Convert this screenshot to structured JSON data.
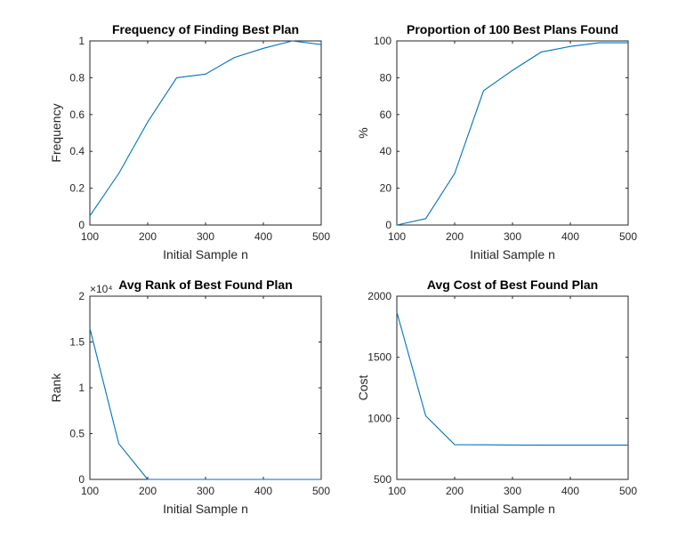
{
  "figure": {
    "background": "#ffffff",
    "line_color": "#0072BD",
    "axis_color": "#262626"
  },
  "chart_data": [
    {
      "type": "line",
      "title": "Frequency of Finding Best Plan",
      "xlabel": "Initial Sample n",
      "ylabel": "Frequency",
      "xlim": [
        100,
        500
      ],
      "ylim": [
        0,
        1
      ],
      "xticks": [
        100,
        200,
        300,
        400,
        500
      ],
      "yticks": [
        0,
        0.2,
        0.4,
        0.6,
        0.8,
        1
      ],
      "ytick_labels": [
        "0",
        "0.2",
        "0.4",
        "0.6",
        "0.8",
        "1"
      ],
      "exponent": "",
      "grid": false,
      "x": [
        100,
        150,
        200,
        250,
        300,
        350,
        400,
        450,
        500
      ],
      "y": [
        0.05,
        0.28,
        0.56,
        0.8,
        0.82,
        0.91,
        0.96,
        1.0,
        0.98
      ]
    },
    {
      "type": "line",
      "title": "Proportion of 100 Best Plans Found",
      "xlabel": "Initial Sample n",
      "ylabel": "%",
      "xlim": [
        100,
        500
      ],
      "ylim": [
        0,
        100
      ],
      "xticks": [
        100,
        200,
        300,
        400,
        500
      ],
      "yticks": [
        0,
        20,
        40,
        60,
        80,
        100
      ],
      "ytick_labels": [
        "0",
        "20",
        "40",
        "60",
        "80",
        "100"
      ],
      "exponent": "",
      "grid": false,
      "x": [
        100,
        150,
        200,
        250,
        300,
        350,
        400,
        450,
        500
      ],
      "y": [
        0,
        3.5,
        28,
        73,
        84,
        94,
        97,
        99,
        99
      ]
    },
    {
      "type": "line",
      "title": "Avg Rank of Best Found Plan",
      "xlabel": "Initial Sample n",
      "ylabel": "Rank",
      "xlim": [
        100,
        500
      ],
      "ylim": [
        0,
        20000
      ],
      "xticks": [
        100,
        200,
        300,
        400,
        500
      ],
      "yticks": [
        0,
        5000,
        10000,
        15000,
        20000
      ],
      "ytick_labels": [
        "0",
        "0.5",
        "1",
        "1.5",
        "2"
      ],
      "exponent": "×10⁴",
      "grid": false,
      "x": [
        100,
        150,
        200,
        250,
        300,
        350,
        400,
        450,
        500
      ],
      "y": [
        16500,
        3900,
        0,
        0,
        0,
        0,
        0,
        0,
        0
      ]
    },
    {
      "type": "line",
      "title": "Avg Cost of Best Found Plan",
      "xlabel": "Initial Sample n",
      "ylabel": "Cost",
      "xlim": [
        100,
        500
      ],
      "ylim": [
        500,
        2000
      ],
      "xticks": [
        100,
        200,
        300,
        400,
        500
      ],
      "yticks": [
        500,
        1000,
        1500,
        2000
      ],
      "ytick_labels": [
        "500",
        "1000",
        "1500",
        "2000"
      ],
      "exponent": "",
      "grid": false,
      "x": [
        100,
        150,
        200,
        250,
        300,
        350,
        400,
        450,
        500
      ],
      "y": [
        1870,
        1020,
        785,
        783,
        782,
        781,
        781,
        781,
        781
      ]
    }
  ]
}
